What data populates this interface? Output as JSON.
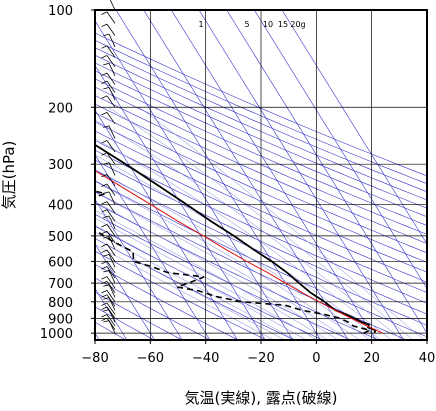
{
  "chart_data": {
    "type": "line",
    "chart_kind": "skew-T log-p aerological diagram",
    "xlabel": "気温(実線), 露点(破線)",
    "ylabel": "気圧(hPa)",
    "x_ticks": [
      -80,
      -60,
      -40,
      -20,
      0,
      20,
      40
    ],
    "y_ticks": [
      100,
      200,
      300,
      400,
      500,
      600,
      700,
      800,
      900,
      1000
    ],
    "xlim": [
      -80,
      40
    ],
    "ylim": [
      1050,
      100
    ],
    "y_scale": "log",
    "grid": true,
    "mixing_ratio_labels": [
      "1",
      "5",
      "10",
      "15",
      "20g"
    ],
    "colors": {
      "frame": "#000000",
      "grid": "#000000",
      "dry_adiabats": "#3535cc",
      "isotherms": "#3535cc",
      "moist_adiabats": "#8080dd",
      "temperature": "#000000",
      "dewpoint": "#000000",
      "parcel_curve": "#dd1111",
      "wind_barbs": "#000000"
    },
    "series": [
      {
        "line": "solid",
        "points": [
          {
            "p": 1000,
            "t": 21
          },
          {
            "p": 980,
            "t": 22
          },
          {
            "p": 960,
            "t": 20
          },
          {
            "p": 940,
            "t": 21
          },
          {
            "p": 925,
            "t": 19
          },
          {
            "p": 900,
            "t": 17
          },
          {
            "p": 875,
            "t": 15
          },
          {
            "p": 850,
            "t": 12
          },
          {
            "p": 800,
            "t": 10
          },
          {
            "p": 750,
            "t": 7
          },
          {
            "p": 700,
            "t": 5
          },
          {
            "p": 650,
            "t": 3
          },
          {
            "p": 600,
            "t": 0
          },
          {
            "p": 550,
            "t": -4
          },
          {
            "p": 500,
            "t": -8
          },
          {
            "p": 450,
            "t": -13
          },
          {
            "p": 400,
            "t": -18
          },
          {
            "p": 350,
            "t": -24
          },
          {
            "p": 300,
            "t": -31
          },
          {
            "p": 250,
            "t": -40
          },
          {
            "p": 200,
            "t": -50
          },
          {
            "p": 180,
            "t": -55
          },
          {
            "p": 160,
            "t": -60
          },
          {
            "p": 150,
            "t": -59
          },
          {
            "p": 140,
            "t": -63
          },
          {
            "p": 130,
            "t": -60
          },
          {
            "p": 120,
            "t": -62
          },
          {
            "p": 110,
            "t": -65
          },
          {
            "p": 100,
            "t": -67
          }
        ]
      },
      {
        "line": "dashed",
        "points": [
          {
            "p": 1000,
            "t": 17
          },
          {
            "p": 980,
            "t": 20
          },
          {
            "p": 950,
            "t": 15
          },
          {
            "p": 925,
            "t": 14
          },
          {
            "p": 900,
            "t": 12
          },
          {
            "p": 875,
            "t": 7
          },
          {
            "p": 850,
            "t": 0
          },
          {
            "p": 820,
            "t": -5
          },
          {
            "p": 800,
            "t": -20
          },
          {
            "p": 770,
            "t": -28
          },
          {
            "p": 740,
            "t": -33
          },
          {
            "p": 720,
            "t": -40
          },
          {
            "p": 700,
            "t": -35
          },
          {
            "p": 670,
            "t": -28
          },
          {
            "p": 650,
            "t": -40
          },
          {
            "p": 620,
            "t": -45
          },
          {
            "p": 600,
            "t": -50
          },
          {
            "p": 560,
            "t": -48
          },
          {
            "p": 520,
            "t": -53
          },
          {
            "p": 480,
            "t": -57
          },
          {
            "p": 440,
            "t": -60
          },
          {
            "p": 400,
            "t": -63
          },
          {
            "p": 380,
            "t": -50
          },
          {
            "p": 370,
            "t": -45
          },
          {
            "p": 360,
            "t": -50
          },
          {
            "p": 330,
            "t": -46
          },
          {
            "p": 310,
            "t": -49
          },
          {
            "p": 300,
            "t": -55
          },
          {
            "p": 290,
            "t": -74
          },
          {
            "p": 280,
            "t": -78
          },
          {
            "p": 270,
            "t": -80
          }
        ]
      },
      {
        "line": "solid",
        "points": [
          {
            "p": 1000,
            "t": 24
          },
          {
            "p": 950,
            "t": 20
          },
          {
            "p": 900,
            "t": 16
          },
          {
            "p": 850,
            "t": 12
          },
          {
            "p": 800,
            "t": 8
          },
          {
            "p": 750,
            "t": 4
          },
          {
            "p": 700,
            "t": 0
          },
          {
            "p": 650,
            "t": -4
          },
          {
            "p": 600,
            "t": -9
          },
          {
            "p": 550,
            "t": -14
          },
          {
            "p": 500,
            "t": -19
          },
          {
            "p": 450,
            "t": -25
          },
          {
            "p": 400,
            "t": -31
          },
          {
            "p": 350,
            "t": -38
          },
          {
            "p": 300,
            "t": -46
          },
          {
            "p": 250,
            "t": -56
          },
          {
            "p": 200,
            "t": -67
          },
          {
            "p": 170,
            "t": -75
          },
          {
            "p": 150,
            "t": -80
          }
        ]
      }
    ],
    "wind_levels_hpa": [
      1000,
      975,
      950,
      925,
      900,
      875,
      850,
      825,
      800,
      775,
      750,
      725,
      700,
      675,
      650,
      625,
      600,
      575,
      550,
      525,
      500,
      475,
      450,
      425,
      400,
      375,
      350,
      325,
      300,
      275,
      250,
      225,
      200,
      190,
      180,
      170,
      160,
      150,
      140,
      130,
      120,
      110,
      100
    ]
  }
}
